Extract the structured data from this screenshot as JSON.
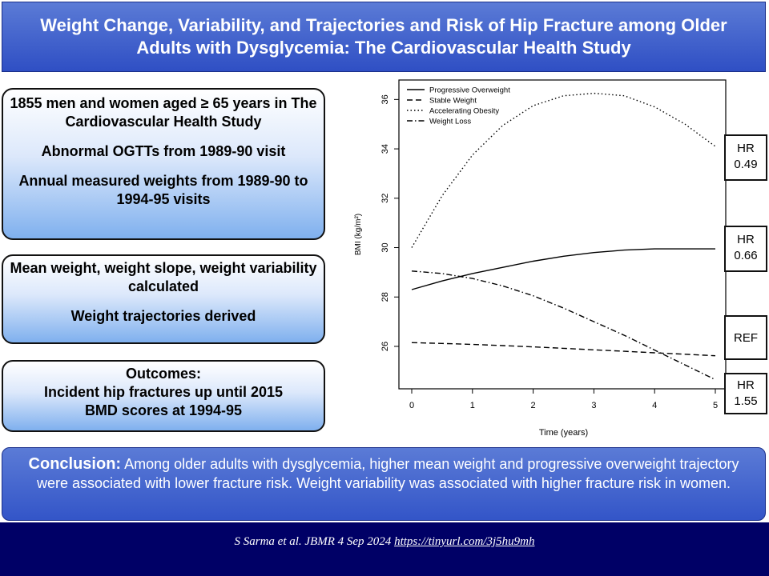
{
  "title": "Weight Change, Variability, and Trajectories and Risk of Hip Fracture among Older Adults with Dysglycemia: The Cardiovascular Health Study",
  "boxes": {
    "box1": {
      "line1": "1855 men and women aged ≥ 65 years in The Cardiovascular Health Study",
      "line2": "Abnormal OGTTs from 1989-90 visit",
      "line3": "Annual measured weights from 1989-90 to 1994-95 visits"
    },
    "box2": {
      "line1": "Mean weight, weight slope, weight variability calculated",
      "line2": "Weight trajectories derived"
    },
    "box3": {
      "line1": "Outcomes:",
      "line2": "Incident hip fractures up until 2015",
      "line3": "BMD scores at 1994-95"
    }
  },
  "hr_labels": [
    {
      "line1": "HR",
      "line2": "0.49"
    },
    {
      "line1": "HR",
      "line2": "0.66"
    },
    {
      "line1": "REF",
      "line2": ""
    },
    {
      "line1": "HR",
      "line2": "1.55"
    }
  ],
  "conclusion": {
    "label": "Conclusion:",
    "text": " Among older adults with dysglycemia, higher mean weight and progressive overweight trajectory were associated with lower fracture risk. Weight variability was associated with higher fracture risk in women."
  },
  "footer": {
    "citation": "S Sarma et al. JBMR 4 Sep 2024 ",
    "link": "https://tinyurl.com/3j5hu9mh"
  },
  "chart_data": {
    "type": "line",
    "xlabel": "Time (years)",
    "ylabel": "BMI (kg/m²)",
    "x": [
      0,
      0.5,
      1,
      1.5,
      2,
      2.5,
      3,
      3.5,
      4,
      4.5,
      5
    ],
    "xlim": [
      0,
      5
    ],
    "ylim": [
      24.8,
      36.4
    ],
    "xticks": [
      0,
      1,
      2,
      3,
      4,
      5
    ],
    "yticks": [
      26,
      28,
      30,
      32,
      34,
      36
    ],
    "legend_position": "top-left",
    "series": [
      {
        "name": "Progressive Overweight",
        "dash": "solid",
        "values": [
          28.3,
          28.65,
          28.95,
          29.2,
          29.45,
          29.65,
          29.8,
          29.9,
          29.95,
          29.95,
          29.95
        ]
      },
      {
        "name": "Stable Weight",
        "dash": "dashed",
        "values": [
          26.15,
          26.12,
          26.08,
          26.03,
          25.98,
          25.92,
          25.86,
          25.8,
          25.74,
          25.68,
          25.62
        ]
      },
      {
        "name": "Accelerating Obesity",
        "dash": "dotted",
        "values": [
          30.0,
          32.1,
          33.75,
          34.95,
          35.75,
          36.15,
          36.25,
          36.15,
          35.7,
          35.0,
          34.1
        ]
      },
      {
        "name": "Weight Loss",
        "dash": "dashdot",
        "values": [
          29.05,
          28.95,
          28.75,
          28.45,
          28.05,
          27.55,
          27.0,
          26.45,
          25.85,
          25.25,
          24.65
        ]
      }
    ]
  }
}
